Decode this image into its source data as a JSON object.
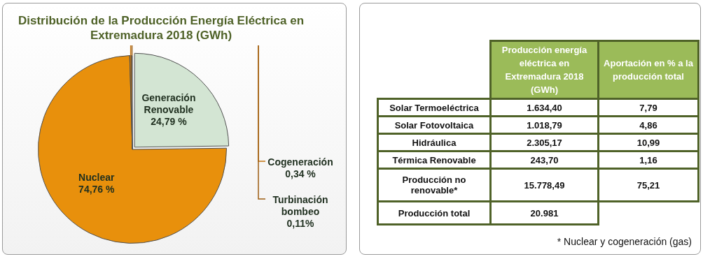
{
  "chart_data": [
    {
      "type": "pie",
      "title": "Distribución de la Producción Energía Eléctrica en Extremadura 2018 (GWh)",
      "categories": [
        "Generación Renovable",
        "Nuclear",
        "Cogeneración",
        "Turbinación bombeo"
      ],
      "values": [
        24.79,
        74.76,
        0.34,
        0.11
      ],
      "colors": [
        "#d3e5d3",
        "#e8900c",
        "#c47410",
        "#9c5c10"
      ],
      "value_labels": [
        "24,79 %",
        "74,76 %",
        "0,34 %",
        "0,11%"
      ],
      "legend": false
    },
    {
      "type": "other",
      "annotations": [
        "Producción energía eléctrica en Extremadura 2018 (GWh)",
        "Aportación en % a la producción total",
        "Solar Termoeléctrica",
        "1.634,40",
        "7,79",
        "Solar Fotovoltaica",
        "1.018,79",
        "4,86",
        "Hidráulica",
        "2.305,17",
        "10,99",
        "Térmica Renovable",
        "243,70",
        "1,16",
        "Producción no renovable*",
        "15.778,49",
        "75,21",
        "Producción total",
        "20.981",
        "* Nuclear y cogeneración (gas)"
      ]
    }
  ]
}
